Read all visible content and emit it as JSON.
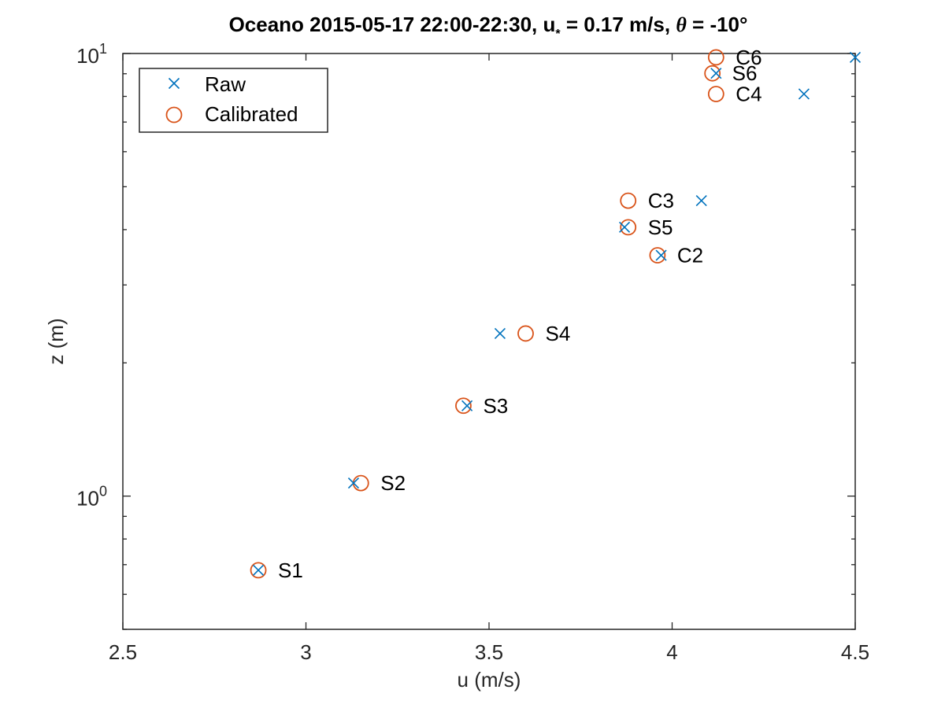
{
  "chart_data": {
    "type": "scatter",
    "title": {
      "prefix": "Oceano 2015-05-17 22:00-22:30, u",
      "subscript": "*",
      "middle": " = 0.17 m/s, ",
      "theta": "θ",
      "suffix": " = -10°"
    },
    "xlabel": "u (m/s)",
    "ylabel": "z (m)",
    "xlim": [
      2.5,
      4.5
    ],
    "ylim": [
      0.5,
      10
    ],
    "yscale": "log",
    "grid": false,
    "legend_position": "top-left",
    "x_ticks": [
      {
        "value": 2.5,
        "label": "2.5"
      },
      {
        "value": 3.0,
        "label": "3"
      },
      {
        "value": 3.5,
        "label": "3.5"
      },
      {
        "value": 4.0,
        "label": "4"
      },
      {
        "value": 4.5,
        "label": "4.5"
      }
    ],
    "y_major_ticks": [
      {
        "value": 1,
        "base": "10",
        "exp": "0"
      },
      {
        "value": 10,
        "base": "10",
        "exp": "1"
      }
    ],
    "y_minor_ticks": [
      0.5,
      0.6,
      0.7,
      0.8,
      0.9,
      2,
      3,
      4,
      5,
      6,
      7,
      8,
      9
    ],
    "series": [
      {
        "name": "Raw",
        "marker": "x",
        "color": "#0072BD",
        "points": [
          {
            "x": 2.87,
            "y": 0.68
          },
          {
            "x": 3.13,
            "y": 1.07
          },
          {
            "x": 3.44,
            "y": 1.6
          },
          {
            "x": 3.53,
            "y": 2.33
          },
          {
            "x": 3.87,
            "y": 4.05
          },
          {
            "x": 3.97,
            "y": 3.5
          },
          {
            "x": 4.08,
            "y": 4.65
          },
          {
            "x": 4.12,
            "y": 9.02
          },
          {
            "x": 4.36,
            "y": 8.1
          },
          {
            "x": 4.5,
            "y": 9.8
          }
        ]
      },
      {
        "name": "Calibrated",
        "marker": "o",
        "color": "#D95319",
        "points": [
          {
            "x": 2.87,
            "y": 0.68,
            "label": "S1"
          },
          {
            "x": 3.15,
            "y": 1.07,
            "label": "S2"
          },
          {
            "x": 3.43,
            "y": 1.6,
            "label": "S3"
          },
          {
            "x": 3.6,
            "y": 2.33,
            "label": "S4"
          },
          {
            "x": 3.88,
            "y": 4.05,
            "label": "S5"
          },
          {
            "x": 3.96,
            "y": 3.5,
            "label": "C2"
          },
          {
            "x": 3.88,
            "y": 4.65,
            "label": "C3"
          },
          {
            "x": 4.11,
            "y": 9.02,
            "label": "S6"
          },
          {
            "x": 4.12,
            "y": 8.1,
            "label": "C4"
          },
          {
            "x": 4.12,
            "y": 9.8,
            "label": "C6"
          }
        ]
      }
    ]
  }
}
